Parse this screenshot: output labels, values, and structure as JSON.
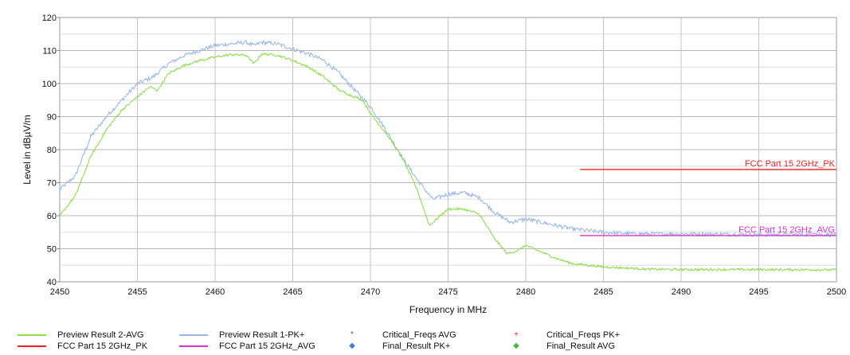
{
  "chart_data": {
    "type": "line",
    "xlabel": "Frequency in MHz",
    "ylabel": "Level in dBµV/m",
    "xlim": [
      2450,
      2500
    ],
    "ylim": [
      40,
      120
    ],
    "xticks": [
      2450,
      2455,
      2460,
      2465,
      2470,
      2475,
      2480,
      2485,
      2490,
      2495,
      2500
    ],
    "yticks": [
      40,
      50,
      60,
      70,
      80,
      90,
      100,
      110,
      120
    ],
    "grid": true,
    "minor_y_grid_step": 5,
    "series": [
      {
        "name": "Preview Result 1-PK+",
        "color": "#9ab8e6",
        "noise": 0.6,
        "points": [
          [
            2450,
            68
          ],
          [
            2451,
            72
          ],
          [
            2452,
            84
          ],
          [
            2453,
            90
          ],
          [
            2454,
            95
          ],
          [
            2455,
            100
          ],
          [
            2456,
            102
          ],
          [
            2457,
            106
          ],
          [
            2458,
            108.5
          ],
          [
            2459,
            110
          ],
          [
            2460,
            111.5
          ],
          [
            2461,
            112
          ],
          [
            2462,
            112.5
          ],
          [
            2462.5,
            111.5
          ],
          [
            2463,
            112.5
          ],
          [
            2464,
            112
          ],
          [
            2465,
            110.5
          ],
          [
            2466,
            109
          ],
          [
            2467,
            107
          ],
          [
            2468,
            103
          ],
          [
            2469,
            98
          ],
          [
            2470,
            93
          ],
          [
            2471,
            86
          ],
          [
            2472,
            78
          ],
          [
            2473,
            71
          ],
          [
            2474,
            65
          ],
          [
            2475,
            66.5
          ],
          [
            2476,
            67
          ],
          [
            2477,
            65.5
          ],
          [
            2478,
            61
          ],
          [
            2479,
            58
          ],
          [
            2480,
            59
          ],
          [
            2481,
            58
          ],
          [
            2482,
            57
          ],
          [
            2483,
            56
          ],
          [
            2484,
            55.5
          ],
          [
            2485,
            55
          ],
          [
            2487,
            54.5
          ],
          [
            2490,
            54.5
          ],
          [
            2495,
            54.3
          ],
          [
            2500,
            54.3
          ]
        ]
      },
      {
        "name": "Preview Result 2-AVG",
        "color": "#8cdf4a",
        "noise": 0.35,
        "points": [
          [
            2450,
            60
          ],
          [
            2451,
            66
          ],
          [
            2452,
            78
          ],
          [
            2453,
            86
          ],
          [
            2454,
            92
          ],
          [
            2455,
            96
          ],
          [
            2455.8,
            99
          ],
          [
            2456.3,
            98
          ],
          [
            2457,
            103
          ],
          [
            2458,
            105.5
          ],
          [
            2459,
            107
          ],
          [
            2460,
            108
          ],
          [
            2461,
            108.8
          ],
          [
            2462,
            108.6
          ],
          [
            2462.5,
            106
          ],
          [
            2463,
            109
          ],
          [
            2464,
            108.6
          ],
          [
            2465,
            107
          ],
          [
            2466,
            105
          ],
          [
            2467,
            102
          ],
          [
            2468,
            98
          ],
          [
            2468.7,
            96.5
          ],
          [
            2469.5,
            95
          ],
          [
            2470,
            91
          ],
          [
            2471,
            85
          ],
          [
            2472,
            78
          ],
          [
            2473,
            68
          ],
          [
            2473.8,
            57
          ],
          [
            2474.5,
            60
          ],
          [
            2475,
            62
          ],
          [
            2476,
            62
          ],
          [
            2477,
            60.5
          ],
          [
            2478,
            53
          ],
          [
            2478.8,
            48.5
          ],
          [
            2479.5,
            49.5
          ],
          [
            2480,
            51
          ],
          [
            2481,
            49
          ],
          [
            2482,
            47
          ],
          [
            2483,
            45.5
          ],
          [
            2485,
            44.5
          ],
          [
            2488,
            43.8
          ],
          [
            2490,
            43.7
          ],
          [
            2495,
            43.7
          ],
          [
            2500,
            43.6
          ]
        ]
      }
    ],
    "limit_lines": [
      {
        "name": "FCC Part 15 2GHz_PK",
        "color": "#ee2222",
        "x_start": 2483.5,
        "x_end": 2500,
        "y": 74
      },
      {
        "name": "FCC Part 15 2GHz_AVG",
        "color": "#dd33cc",
        "x_start": 2483.5,
        "x_end": 2500,
        "y": 54
      }
    ]
  },
  "legend": {
    "items": [
      {
        "label": "Preview Result 2-AVG",
        "color": "#8cdf4a",
        "kind": "line"
      },
      {
        "label": "Preview Result 1-PK+",
        "color": "#9ab8e6",
        "kind": "line"
      },
      {
        "label": "Critical_Freqs AVG",
        "color": "#3a55c0",
        "kind": "marker",
        "symbol": "*"
      },
      {
        "label": "Critical_Freqs PK+",
        "color": "#ee2222",
        "kind": "marker",
        "symbol": "+"
      },
      {
        "label": "FCC Part 15 2GHz_PK",
        "color": "#ee2222",
        "kind": "line"
      },
      {
        "label": "FCC Part 15 2GHz_AVG",
        "color": "#dd33cc",
        "kind": "line"
      },
      {
        "label": "Final_Result PK+",
        "color": "#3a7fd0",
        "kind": "marker",
        "symbol": "◆"
      },
      {
        "label": "Final_Result AVG",
        "color": "#44b844",
        "kind": "marker",
        "symbol": "◆"
      }
    ]
  }
}
